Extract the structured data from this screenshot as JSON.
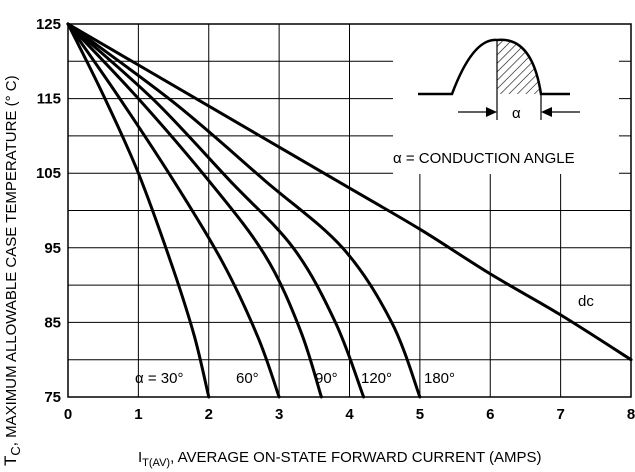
{
  "chart_data": {
    "type": "line",
    "ylabel": "T",
    "ylabel_sub": "C",
    "ylabel_rest": ", MAXIMUM ALLOWABLE CASE TEMPERATURE (° C)",
    "xlabel": "I",
    "xlabel_sub": "T(AV)",
    "xlabel_rest": ", AVERAGE ON-STATE FORWARD CURRENT (AMPS)",
    "xlim": [
      0,
      8
    ],
    "ylim": [
      75,
      125
    ],
    "x_ticks": [
      "0",
      "1",
      "2",
      "3",
      "4",
      "5",
      "6",
      "7",
      "8"
    ],
    "y_ticks": [
      "75",
      "85",
      "95",
      "105",
      "115",
      "125"
    ],
    "grid": true,
    "inset_legend": "α = CONDUCTION ANGLE",
    "inset_alpha": "α",
    "series": [
      {
        "name": "α = 30°",
        "x": [
          0,
          0.5,
          1.0,
          1.5,
          1.8,
          2.0
        ],
        "y": [
          125,
          115.5,
          105,
          92,
          83,
          75
        ]
      },
      {
        "name": "60°",
        "x": [
          0,
          0.7,
          1.5,
          2.2,
          2.7,
          3.0
        ],
        "y": [
          125,
          115.5,
          104,
          93,
          83,
          75
        ]
      },
      {
        "name": "90°",
        "x": [
          0,
          1.0,
          2.0,
          2.8,
          3.3,
          3.6
        ],
        "y": [
          125,
          115,
          104,
          94,
          84,
          75
        ]
      },
      {
        "name": "120°",
        "x": [
          0,
          1.2,
          2.3,
          3.2,
          3.8,
          4.2
        ],
        "y": [
          125,
          115,
          104,
          95,
          85,
          75
        ]
      },
      {
        "name": "180°",
        "x": [
          0,
          1.5,
          2.8,
          3.9,
          4.6,
          5.0
        ],
        "y": [
          125,
          114.5,
          104,
          95,
          85,
          75
        ]
      },
      {
        "name": "dc",
        "x": [
          0,
          1,
          2,
          3,
          4,
          5,
          6,
          7,
          8
        ],
        "y": [
          125,
          119.5,
          114,
          108.5,
          103,
          97.5,
          91.5,
          86,
          80
        ]
      }
    ]
  }
}
